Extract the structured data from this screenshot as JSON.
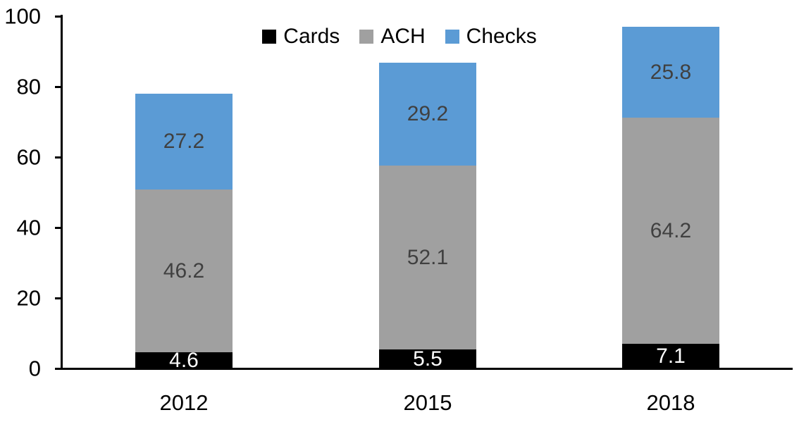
{
  "chart_data": {
    "type": "bar",
    "stacked": true,
    "title": "",
    "xlabel": "",
    "ylabel": "",
    "categories": [
      "2012",
      "2015",
      "2018"
    ],
    "series": [
      {
        "name": "Cards",
        "color": "#000000",
        "label_color": "#FFFFFF",
        "values": [
          4.6,
          5.5,
          7.1
        ]
      },
      {
        "name": "ACH",
        "color": "#A0A0A0",
        "label_color": "#404040",
        "values": [
          46.2,
          52.1,
          64.2
        ]
      },
      {
        "name": "Checks",
        "color": "#5B9BD5",
        "label_color": "#404040",
        "values": [
          27.2,
          29.2,
          25.8
        ]
      }
    ],
    "ylim": [
      0,
      100
    ],
    "yticks": [
      0,
      20,
      40,
      60,
      80,
      100
    ],
    "legend_position": "top-center",
    "legend_labels": [
      "Cards",
      "ACH",
      "Checks"
    ],
    "grid": false,
    "axis_color": "#000000",
    "background_color": "#FFFFFF"
  }
}
